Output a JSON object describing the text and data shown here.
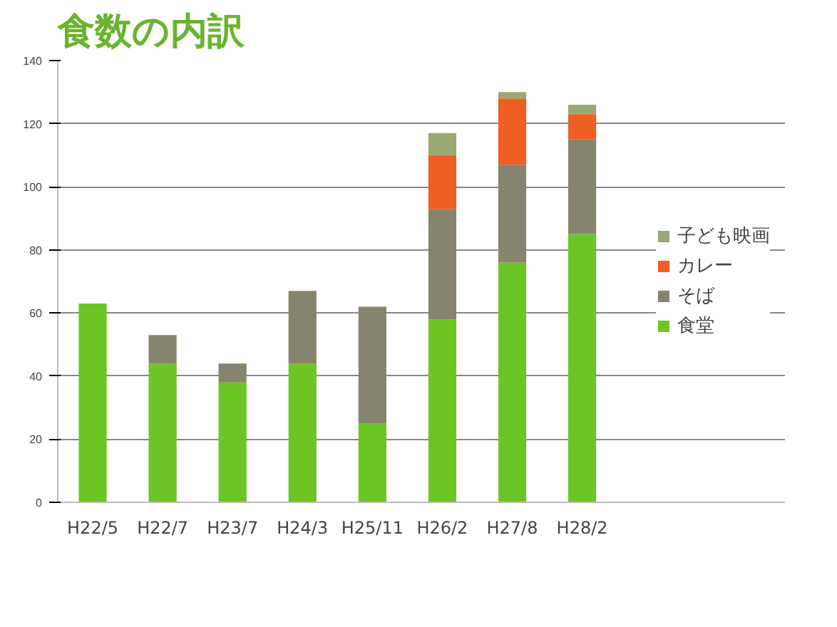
{
  "chart_data": {
    "type": "bar",
    "title": "食数の内訳",
    "stacked": true,
    "categories": [
      "H22/5",
      "H22/7",
      "H23/7",
      "H24/3",
      "H25/11",
      "H26/2",
      "H27/8",
      "H28/2"
    ],
    "series": [
      {
        "name": "食堂",
        "color": "#6cc524",
        "values": [
          63,
          44,
          38,
          44,
          25,
          58,
          76,
          85
        ]
      },
      {
        "name": "そば",
        "color": "#86846f",
        "values": [
          null,
          9,
          6,
          23,
          37,
          35,
          31,
          30
        ]
      },
      {
        "name": "カレー",
        "color": "#ef5e22",
        "values": [
          null,
          null,
          null,
          null,
          null,
          17,
          21,
          8
        ]
      },
      {
        "name": "子ども映画",
        "color": "#9aa873",
        "values": [
          null,
          null,
          null,
          null,
          null,
          7,
          2,
          3
        ]
      }
    ],
    "ylim": [
      0,
      140
    ],
    "yticks": [
      0,
      20,
      40,
      60,
      80,
      100,
      120,
      140
    ],
    "grid": "y",
    "legend": "right"
  }
}
